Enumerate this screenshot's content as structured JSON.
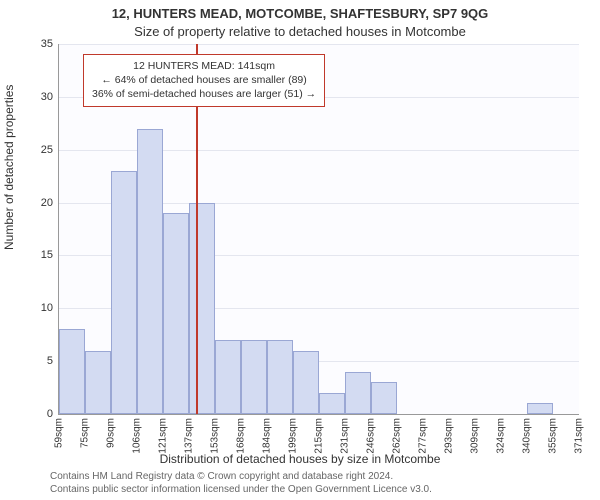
{
  "title_line1": "12, HUNTERS MEAD, MOTCOMBE, SHAFTESBURY, SP7 9QG",
  "title_line2": "Size of property relative to detached houses in Motcombe",
  "ylabel": "Number of detached properties",
  "xlabel": "Distribution of detached houses by size in Motcombe",
  "footer_line1": "Contains HM Land Registry data © Crown copyright and database right 2024.",
  "footer_line2": "Contains public sector information licensed under the Open Government Licence v3.0.",
  "chart": {
    "type": "histogram",
    "background_color": "#fcfcff",
    "grid_color": "#e4e6ef",
    "axis_color": "#999999",
    "bar_fill": "#d3dbf2",
    "bar_border": "#9aa7d4",
    "marker_line_color": "#c0392b",
    "ylim": [
      0,
      35
    ],
    "ytick_step": 5,
    "yticks": [
      0,
      5,
      10,
      15,
      20,
      25,
      30,
      35
    ],
    "xticks": [
      "59sqm",
      "75sqm",
      "90sqm",
      "106sqm",
      "121sqm",
      "137sqm",
      "153sqm",
      "168sqm",
      "184sqm",
      "199sqm",
      "215sqm",
      "231sqm",
      "246sqm",
      "262sqm",
      "277sqm",
      "293sqm",
      "309sqm",
      "324sqm",
      "340sqm",
      "355sqm",
      "371sqm"
    ],
    "values": [
      8,
      6,
      23,
      27,
      19,
      20,
      7,
      7,
      7,
      6,
      2,
      4,
      3,
      0,
      0,
      0,
      0,
      0,
      1,
      0
    ],
    "marker_bin_index": 5,
    "title_fontsize": 13,
    "label_fontsize": 12,
    "tick_fontsize": 11,
    "annotation_fontsize": 10.5
  },
  "annotation": {
    "line1": "12 HUNTERS MEAD: 141sqm",
    "line2": "← 64% of detached houses are smaller (89)",
    "line3": "36% of semi-detached houses are larger (51) →",
    "border_color": "#c0392b",
    "background_color": "#ffffff"
  }
}
